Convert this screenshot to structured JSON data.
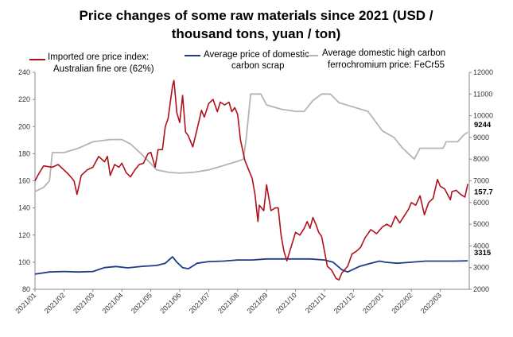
{
  "chart_data": {
    "type": "line",
    "title_lines": [
      "Price changes of some raw materials since 2021 (USD /",
      "thousand tons, yuan / ton)"
    ],
    "x_categories": [
      "2021/01",
      "2021/02",
      "2021/03",
      "2021/04",
      "2021/05",
      "2021/06",
      "2021/07",
      "2021/08",
      "2021/09",
      "2021/10",
      "2021/11",
      "2021/12",
      "2022/01",
      "2022/02",
      "2022/03"
    ],
    "left_axis": {
      "min": 80,
      "max": 240,
      "step": 20,
      "ticks": [
        "80",
        "100",
        "120",
        "140",
        "160",
        "180",
        "200",
        "220",
        "240"
      ]
    },
    "right_axis": {
      "min": 2000,
      "max": 12000,
      "step": 1000,
      "ticks": [
        "2000",
        "3000",
        "4000",
        "5000",
        "6000",
        "7000",
        "8000",
        "9000",
        "10000",
        "11000",
        "12000"
      ]
    },
    "series": [
      {
        "name": "Imported ore price index: Australian fine ore (62%)",
        "legend_lines": [
          "Imported ore price index:",
          "Australian fine ore (62%)"
        ],
        "axis": "left",
        "color": "#b01019",
        "end_label": "157.7",
        "points": [
          [
            0,
            160
          ],
          [
            0.15,
            166
          ],
          [
            0.3,
            171
          ],
          [
            0.6,
            170
          ],
          [
            0.8,
            172
          ],
          [
            1,
            168
          ],
          [
            1.15,
            165
          ],
          [
            1.35,
            160
          ],
          [
            1.45,
            150
          ],
          [
            1.6,
            164
          ],
          [
            1.8,
            168
          ],
          [
            2,
            170
          ],
          [
            2.2,
            178
          ],
          [
            2.4,
            174
          ],
          [
            2.5,
            178
          ],
          [
            2.6,
            164
          ],
          [
            2.75,
            172
          ],
          [
            2.9,
            170
          ],
          [
            3,
            173
          ],
          [
            3.15,
            166
          ],
          [
            3.3,
            163
          ],
          [
            3.45,
            168
          ],
          [
            3.6,
            172
          ],
          [
            3.75,
            173
          ],
          [
            3.9,
            180
          ],
          [
            4,
            181
          ],
          [
            4.15,
            170
          ],
          [
            4.25,
            183
          ],
          [
            4.4,
            183
          ],
          [
            4.5,
            200
          ],
          [
            4.6,
            206
          ],
          [
            4.75,
            230
          ],
          [
            4.8,
            234
          ],
          [
            4.9,
            210
          ],
          [
            5,
            203
          ],
          [
            5.1,
            223
          ],
          [
            5.2,
            196
          ],
          [
            5.3,
            193
          ],
          [
            5.45,
            185
          ],
          [
            5.6,
            198
          ],
          [
            5.75,
            212
          ],
          [
            5.85,
            207
          ],
          [
            6,
            217
          ],
          [
            6.15,
            220
          ],
          [
            6.3,
            211
          ],
          [
            6.4,
            218
          ],
          [
            6.55,
            216
          ],
          [
            6.7,
            218
          ],
          [
            6.8,
            211
          ],
          [
            6.9,
            214
          ],
          [
            7,
            209
          ],
          [
            7.1,
            190
          ],
          [
            7.25,
            175
          ],
          [
            7.4,
            167
          ],
          [
            7.5,
            162
          ],
          [
            7.6,
            150
          ],
          [
            7.7,
            130
          ],
          [
            7.75,
            142
          ],
          [
            7.9,
            138
          ],
          [
            8,
            157
          ],
          [
            8.15,
            138
          ],
          [
            8.3,
            140
          ],
          [
            8.4,
            140
          ],
          [
            8.5,
            120
          ],
          [
            8.6,
            108
          ],
          [
            8.7,
            101
          ],
          [
            8.8,
            108
          ],
          [
            8.9,
            115
          ],
          [
            9,
            122
          ],
          [
            9.15,
            120
          ],
          [
            9.3,
            125
          ],
          [
            9.4,
            130
          ],
          [
            9.5,
            125
          ],
          [
            9.6,
            133
          ],
          [
            9.7,
            128
          ],
          [
            9.8,
            122
          ],
          [
            9.9,
            119
          ],
          [
            10,
            108
          ],
          [
            10.1,
            97
          ],
          [
            10.25,
            94
          ],
          [
            10.4,
            88
          ],
          [
            10.5,
            87
          ],
          [
            10.6,
            92
          ],
          [
            10.8,
            97
          ],
          [
            10.95,
            106
          ],
          [
            11.1,
            108
          ],
          [
            11.25,
            111
          ],
          [
            11.4,
            118
          ],
          [
            11.6,
            124
          ],
          [
            11.8,
            121
          ],
          [
            12,
            126
          ],
          [
            12.15,
            128
          ],
          [
            12.3,
            126
          ],
          [
            12.45,
            134
          ],
          [
            12.6,
            129
          ],
          [
            12.75,
            134
          ],
          [
            12.9,
            139
          ],
          [
            13,
            144
          ],
          [
            13.15,
            142
          ],
          [
            13.3,
            149
          ],
          [
            13.45,
            135
          ],
          [
            13.6,
            144
          ],
          [
            13.75,
            147
          ],
          [
            13.9,
            161
          ],
          [
            14,
            156
          ],
          [
            14.15,
            154
          ],
          [
            14.3,
            148
          ],
          [
            14.35,
            146
          ],
          [
            14.4,
            152
          ],
          [
            14.55,
            153
          ],
          [
            14.7,
            150
          ],
          [
            14.85,
            148
          ],
          [
            14.95,
            157.7
          ]
        ]
      },
      {
        "name": "Average price of domestic carbon scrap",
        "legend_lines": [
          "Average price of domestic",
          "carbon scrap"
        ],
        "axis": "right",
        "color": "#1f3c88",
        "end_label": "3315",
        "points": [
          [
            0,
            2700
          ],
          [
            0.5,
            2800
          ],
          [
            1,
            2820
          ],
          [
            1.5,
            2800
          ],
          [
            2,
            2820
          ],
          [
            2.4,
            3000
          ],
          [
            2.8,
            3050
          ],
          [
            3.2,
            2990
          ],
          [
            3.7,
            3060
          ],
          [
            4.2,
            3100
          ],
          [
            4.5,
            3200
          ],
          [
            4.75,
            3500
          ],
          [
            4.9,
            3250
          ],
          [
            5.1,
            3000
          ],
          [
            5.3,
            2950
          ],
          [
            5.6,
            3200
          ],
          [
            6,
            3280
          ],
          [
            6.5,
            3300
          ],
          [
            7,
            3350
          ],
          [
            7.5,
            3350
          ],
          [
            8,
            3400
          ],
          [
            8.5,
            3400
          ],
          [
            9,
            3400
          ],
          [
            9.5,
            3400
          ],
          [
            10,
            3350
          ],
          [
            10.3,
            3250
          ],
          [
            10.6,
            2900
          ],
          [
            10.8,
            2800
          ],
          [
            11.2,
            3050
          ],
          [
            11.6,
            3200
          ],
          [
            11.9,
            3300
          ],
          [
            12.1,
            3250
          ],
          [
            12.5,
            3200
          ],
          [
            13,
            3250
          ],
          [
            13.5,
            3300
          ],
          [
            14,
            3300
          ],
          [
            14.5,
            3300
          ],
          [
            14.95,
            3315
          ]
        ]
      },
      {
        "name": "Average domestic high carbon ferrochromium price: FeCr55",
        "legend_lines": [
          "Average domestic high carbon",
          "ferrochromium price: FeCr55"
        ],
        "axis": "right",
        "color": "#b4b4b4",
        "end_label": "9244",
        "points": [
          [
            0,
            6500
          ],
          [
            0.3,
            6700
          ],
          [
            0.5,
            7000
          ],
          [
            0.6,
            8300
          ],
          [
            1,
            8300
          ],
          [
            1.5,
            8500
          ],
          [
            2,
            8800
          ],
          [
            2.6,
            8900
          ],
          [
            3,
            8900
          ],
          [
            3.3,
            8700
          ],
          [
            3.7,
            8200
          ],
          [
            4,
            7800
          ],
          [
            4.2,
            7500
          ],
          [
            4.6,
            7400
          ],
          [
            5,
            7350
          ],
          [
            5.5,
            7400
          ],
          [
            6,
            7500
          ],
          [
            6.5,
            7700
          ],
          [
            7,
            7900
          ],
          [
            7.2,
            8000
          ],
          [
            7.3,
            9000
          ],
          [
            7.45,
            11000
          ],
          [
            7.8,
            11000
          ],
          [
            8,
            10500
          ],
          [
            8.5,
            10300
          ],
          [
            9,
            10200
          ],
          [
            9.3,
            10200
          ],
          [
            9.6,
            10700
          ],
          [
            9.9,
            11000
          ],
          [
            10.2,
            11000
          ],
          [
            10.5,
            10600
          ],
          [
            11,
            10400
          ],
          [
            11.5,
            10200
          ],
          [
            12,
            9300
          ],
          [
            12.4,
            9000
          ],
          [
            12.7,
            8500
          ],
          [
            13.1,
            8000
          ],
          [
            13.3,
            8500
          ],
          [
            13.8,
            8500
          ],
          [
            14.1,
            8500
          ],
          [
            14.2,
            8800
          ],
          [
            14.6,
            8800
          ],
          [
            14.8,
            9100
          ],
          [
            14.95,
            9244
          ]
        ]
      }
    ]
  }
}
